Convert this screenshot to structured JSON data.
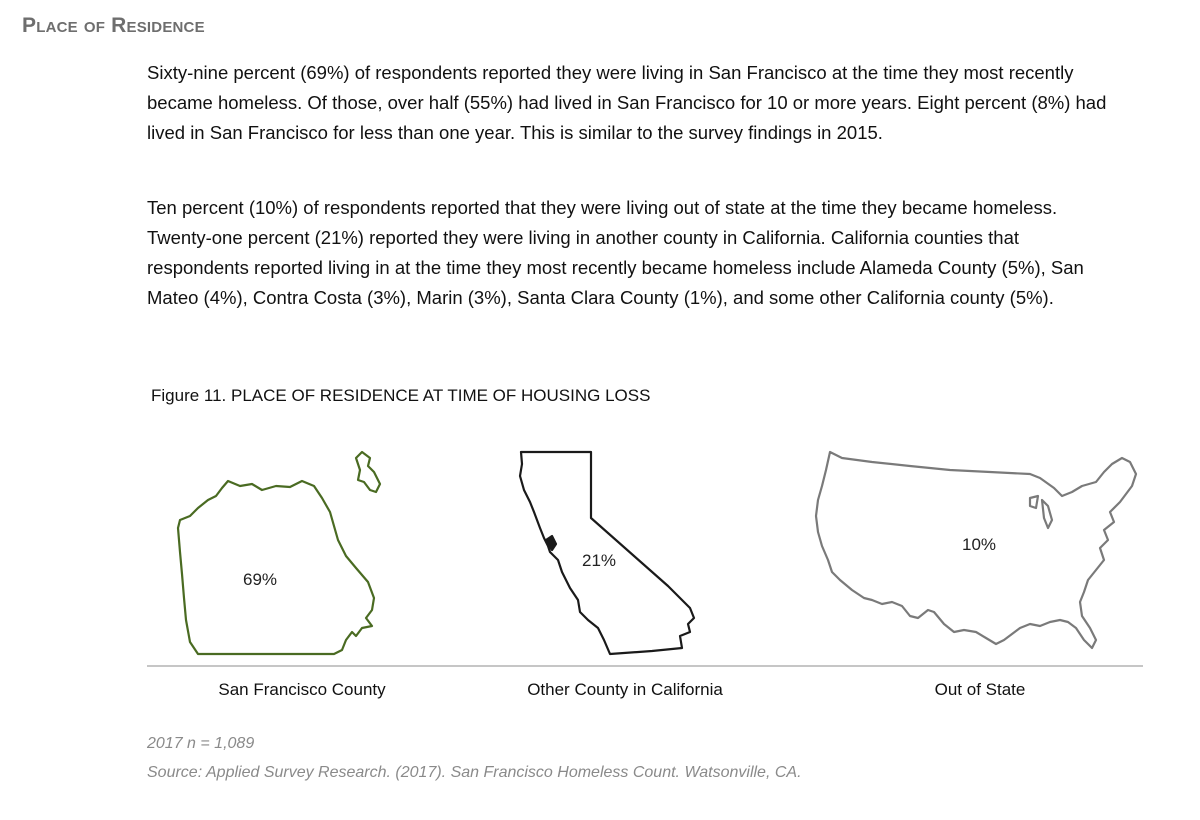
{
  "section_title": "Place of Residence",
  "paragraphs": [
    "Sixty-nine percent (69%) of respondents reported they were living in San Francisco at the time they most recently became homeless. Of those, over half (55%) had lived in San Francisco for 10 or more years. Eight percent (8%) had lived in San Francisco for less than one year. This is similar to the survey findings in 2015.",
    "Ten percent (10%) of respondents reported that they were living out of state at the time they became homeless. Twenty-one percent (21%) reported they were living in another county in California. California counties that respondents reported living in at the time they most recently became homeless include Alameda County (5%), San Mateo (4%), Contra Costa (3%), Marin (3%), Santa Clara County (1%), and some other California county (5%)."
  ],
  "figure": {
    "caption": "Figure 11. PLACE OF RESIDENCE AT TIME OF HOUSING LOSS",
    "items": [
      {
        "label": "San Francisco County",
        "percent": "69%",
        "outline_color": "#4a6b22",
        "icon": "san-francisco-map-icon"
      },
      {
        "label": "Other County in California",
        "percent": "21%",
        "outline_color": "#1a1a1a",
        "icon": "california-map-icon"
      },
      {
        "label": "Out of State",
        "percent": "10%",
        "outline_color": "#7a7a7a",
        "icon": "usa-map-icon"
      }
    ],
    "sample_note": "2017 n = 1,089",
    "source": "Source: Applied Survey Research. (2017). San Francisco Homeless Count. Watsonville, CA."
  }
}
